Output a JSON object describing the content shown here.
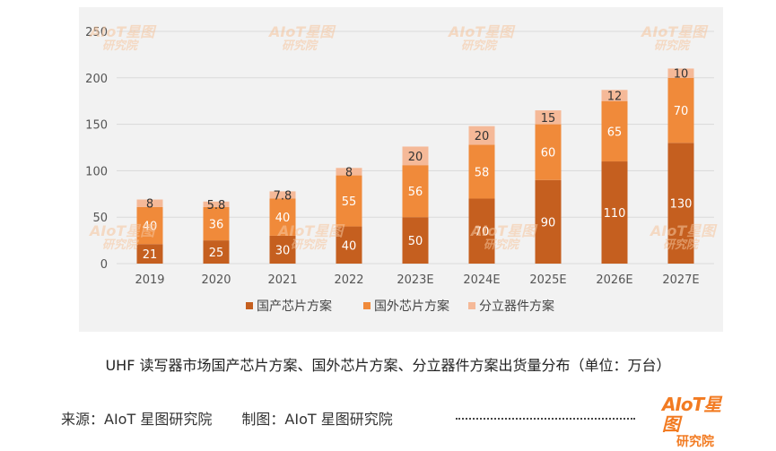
{
  "chart_data": {
    "type": "bar",
    "stacked": true,
    "categories": [
      "2019",
      "2020",
      "2021",
      "2022",
      "2023E",
      "2024E",
      "2025E",
      "2026E",
      "2027E"
    ],
    "series": [
      {
        "name": "国产芯片方案",
        "color": "#c55f1f",
        "values": [
          21,
          25,
          30,
          40,
          50,
          70,
          90,
          110,
          130
        ],
        "labels": [
          "21",
          "25",
          "30",
          "40",
          "50",
          "70",
          "90",
          "110",
          "130"
        ]
      },
      {
        "name": "国外芯片方案",
        "color": "#f08a3a",
        "values": [
          40,
          36,
          40,
          55,
          56,
          58,
          60,
          65,
          70
        ],
        "labels": [
          "40",
          "36",
          "40",
          "55",
          "56",
          "58",
          "60",
          "65",
          "70"
        ]
      },
      {
        "name": "分立器件方案",
        "color": "#f5b998",
        "values": [
          8,
          5.8,
          7.8,
          8,
          20,
          20,
          15,
          12,
          10
        ],
        "labels": [
          "8",
          "5.8",
          "7.8",
          "8",
          "20",
          "20",
          "15",
          "12",
          "10"
        ]
      }
    ],
    "ylim": [
      0,
      250
    ],
    "yticks": [
      "0",
      "50",
      "100",
      "150",
      "200",
      "250"
    ],
    "grid": true,
    "legend_position": "bottom"
  },
  "caption": "UHF 读写器市场国产芯片方案、国外芯片方案、分立器件方案出货量分布（单位：万台）",
  "footer": {
    "source": "来源：AIoT 星图研究院",
    "made_by": "制图：AIoT 星图研究院"
  },
  "logo": {
    "line1": "AIoT星图",
    "line2": "研究院",
    "color": "#f27b22"
  }
}
